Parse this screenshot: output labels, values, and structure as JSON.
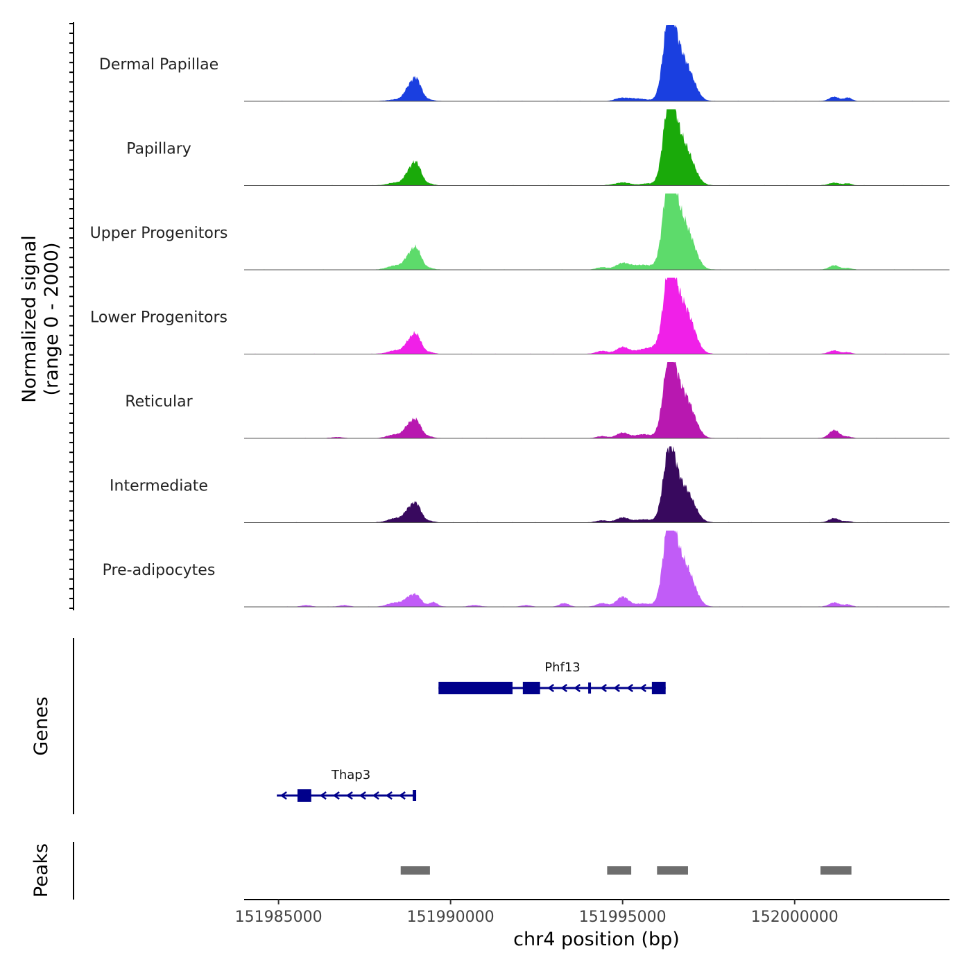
{
  "chart_data": {
    "type": "area",
    "title": "",
    "x_axis": {
      "label": "chr4 position (bp)",
      "range": [
        151984000,
        152004500
      ],
      "ticks": [
        151985000,
        151990000,
        151995000,
        152000000
      ],
      "tick_labels": [
        "151985000",
        "151990000",
        "151995000",
        "152000000"
      ]
    },
    "y_axis": {
      "label_line1": "Normalized signal",
      "label_line2": "(range 0 - 2000)",
      "range": [
        0,
        2000
      ]
    },
    "series": [
      {
        "name": "Dermal Papillae",
        "color": "#1a3fe0",
        "peaks": [
          {
            "x": 151988400,
            "w": 200,
            "h": 45
          },
          {
            "x": 151988750,
            "w": 130,
            "h": 230
          },
          {
            "x": 151989000,
            "w": 150,
            "h": 580
          },
          {
            "x": 151989400,
            "w": 120,
            "h": 35
          },
          {
            "x": 151994900,
            "w": 160,
            "h": 55
          },
          {
            "x": 151995200,
            "w": 200,
            "h": 70
          },
          {
            "x": 151995600,
            "w": 180,
            "h": 45
          },
          {
            "x": 151996350,
            "w": 170,
            "h": 1850
          },
          {
            "x": 151996650,
            "w": 260,
            "h": 1100
          },
          {
            "x": 151997000,
            "w": 200,
            "h": 280
          },
          {
            "x": 152001150,
            "w": 150,
            "h": 110
          },
          {
            "x": 152001550,
            "w": 110,
            "h": 90
          }
        ]
      },
      {
        "name": "Papillary",
        "color": "#1aaa0a",
        "peaks": [
          {
            "x": 151988400,
            "w": 220,
            "h": 70
          },
          {
            "x": 151988750,
            "w": 130,
            "h": 220
          },
          {
            "x": 151989000,
            "w": 150,
            "h": 580
          },
          {
            "x": 151989400,
            "w": 120,
            "h": 35
          },
          {
            "x": 151995000,
            "w": 220,
            "h": 75
          },
          {
            "x": 151995700,
            "w": 180,
            "h": 45
          },
          {
            "x": 151996350,
            "w": 170,
            "h": 1850
          },
          {
            "x": 151996650,
            "w": 260,
            "h": 1100
          },
          {
            "x": 151997000,
            "w": 200,
            "h": 280
          },
          {
            "x": 152001150,
            "w": 150,
            "h": 70
          },
          {
            "x": 152001550,
            "w": 110,
            "h": 50
          }
        ]
      },
      {
        "name": "Upper Progenitors",
        "color": "#5ddb6b",
        "peaks": [
          {
            "x": 151988400,
            "w": 220,
            "h": 110
          },
          {
            "x": 151988750,
            "w": 130,
            "h": 220
          },
          {
            "x": 151989000,
            "w": 150,
            "h": 550
          },
          {
            "x": 151989400,
            "w": 120,
            "h": 40
          },
          {
            "x": 151994400,
            "w": 160,
            "h": 60
          },
          {
            "x": 151995000,
            "w": 200,
            "h": 160
          },
          {
            "x": 151995600,
            "w": 300,
            "h": 120
          },
          {
            "x": 151996350,
            "w": 170,
            "h": 2000
          },
          {
            "x": 151996650,
            "w": 280,
            "h": 1250
          },
          {
            "x": 151997000,
            "w": 200,
            "h": 300
          },
          {
            "x": 152001150,
            "w": 150,
            "h": 110
          },
          {
            "x": 152001550,
            "w": 110,
            "h": 40
          }
        ]
      },
      {
        "name": "Lower Progenitors",
        "color": "#f020e8",
        "peaks": [
          {
            "x": 151988400,
            "w": 220,
            "h": 90
          },
          {
            "x": 151988750,
            "w": 130,
            "h": 200
          },
          {
            "x": 151989000,
            "w": 150,
            "h": 500
          },
          {
            "x": 151989400,
            "w": 120,
            "h": 40
          },
          {
            "x": 151994400,
            "w": 160,
            "h": 80
          },
          {
            "x": 151995000,
            "w": 180,
            "h": 180
          },
          {
            "x": 151995600,
            "w": 220,
            "h": 120
          },
          {
            "x": 151995900,
            "w": 150,
            "h": 90
          },
          {
            "x": 151996350,
            "w": 170,
            "h": 1700
          },
          {
            "x": 151996650,
            "w": 280,
            "h": 1250
          },
          {
            "x": 151997000,
            "w": 200,
            "h": 320
          },
          {
            "x": 152001150,
            "w": 150,
            "h": 90
          },
          {
            "x": 152001550,
            "w": 110,
            "h": 40
          }
        ]
      },
      {
        "name": "Reticular",
        "color": "#b818b0",
        "peaks": [
          {
            "x": 151986700,
            "w": 150,
            "h": 30
          },
          {
            "x": 151988400,
            "w": 220,
            "h": 100
          },
          {
            "x": 151988750,
            "w": 130,
            "h": 220
          },
          {
            "x": 151989000,
            "w": 150,
            "h": 460
          },
          {
            "x": 151989400,
            "w": 120,
            "h": 40
          },
          {
            "x": 151994400,
            "w": 160,
            "h": 50
          },
          {
            "x": 151995000,
            "w": 180,
            "h": 140
          },
          {
            "x": 151995600,
            "w": 220,
            "h": 100
          },
          {
            "x": 151996350,
            "w": 170,
            "h": 1650
          },
          {
            "x": 151996650,
            "w": 280,
            "h": 1150
          },
          {
            "x": 151997000,
            "w": 200,
            "h": 300
          },
          {
            "x": 152001150,
            "w": 150,
            "h": 210
          },
          {
            "x": 152001550,
            "w": 110,
            "h": 40
          }
        ]
      },
      {
        "name": "Intermediate",
        "color": "#38095e",
        "peaks": [
          {
            "x": 151988400,
            "w": 220,
            "h": 110
          },
          {
            "x": 151988750,
            "w": 130,
            "h": 220
          },
          {
            "x": 151989000,
            "w": 150,
            "h": 480
          },
          {
            "x": 151989400,
            "w": 120,
            "h": 35
          },
          {
            "x": 151994400,
            "w": 160,
            "h": 55
          },
          {
            "x": 151995000,
            "w": 180,
            "h": 130
          },
          {
            "x": 151995600,
            "w": 220,
            "h": 80
          },
          {
            "x": 151996350,
            "w": 170,
            "h": 1550
          },
          {
            "x": 151996650,
            "w": 280,
            "h": 900
          },
          {
            "x": 151997000,
            "w": 200,
            "h": 250
          },
          {
            "x": 152001150,
            "w": 150,
            "h": 110
          },
          {
            "x": 152001550,
            "w": 110,
            "h": 30
          }
        ]
      },
      {
        "name": "Pre-adipocytes",
        "color": "#c15cf7",
        "peaks": [
          {
            "x": 151985800,
            "w": 140,
            "h": 40
          },
          {
            "x": 151986900,
            "w": 140,
            "h": 40
          },
          {
            "x": 151988400,
            "w": 220,
            "h": 110
          },
          {
            "x": 151988750,
            "w": 130,
            "h": 150
          },
          {
            "x": 151989000,
            "w": 150,
            "h": 300
          },
          {
            "x": 151989500,
            "w": 120,
            "h": 120
          },
          {
            "x": 151990700,
            "w": 140,
            "h": 45
          },
          {
            "x": 151992200,
            "w": 140,
            "h": 40
          },
          {
            "x": 151993300,
            "w": 140,
            "h": 90
          },
          {
            "x": 151994400,
            "w": 160,
            "h": 90
          },
          {
            "x": 151995000,
            "w": 180,
            "h": 260
          },
          {
            "x": 151995600,
            "w": 220,
            "h": 80
          },
          {
            "x": 151996350,
            "w": 170,
            "h": 1800
          },
          {
            "x": 151996650,
            "w": 280,
            "h": 1150
          },
          {
            "x": 151997000,
            "w": 200,
            "h": 290
          },
          {
            "x": 152001150,
            "w": 150,
            "h": 110
          },
          {
            "x": 152001550,
            "w": 110,
            "h": 60
          }
        ]
      }
    ],
    "genes": {
      "label": "Genes",
      "color": "#00008b",
      "items": [
        {
          "name": "Phf13",
          "strand": "-",
          "start": 151989650,
          "end": 151996250,
          "exons": [
            [
              151989650,
              151991800,
              "thick"
            ],
            [
              151992100,
              151992600,
              "thick"
            ],
            [
              151994000,
              151994080,
              "thin"
            ],
            [
              151995850,
              151996250,
              "thick"
            ]
          ]
        },
        {
          "name": "Thap3",
          "strand": "-",
          "start": 151984950,
          "end": 151989000,
          "exons": [
            [
              151985550,
              151985950,
              "thick"
            ],
            [
              151988900,
              151989000,
              "thin"
            ]
          ]
        }
      ]
    },
    "peaks_track": {
      "label": "Peaks",
      "color": "#6e6e6e",
      "regions": [
        [
          151988550,
          151989400
        ],
        [
          151994550,
          151995250
        ],
        [
          151996000,
          151996900
        ],
        [
          152000750,
          152001650
        ]
      ]
    }
  }
}
